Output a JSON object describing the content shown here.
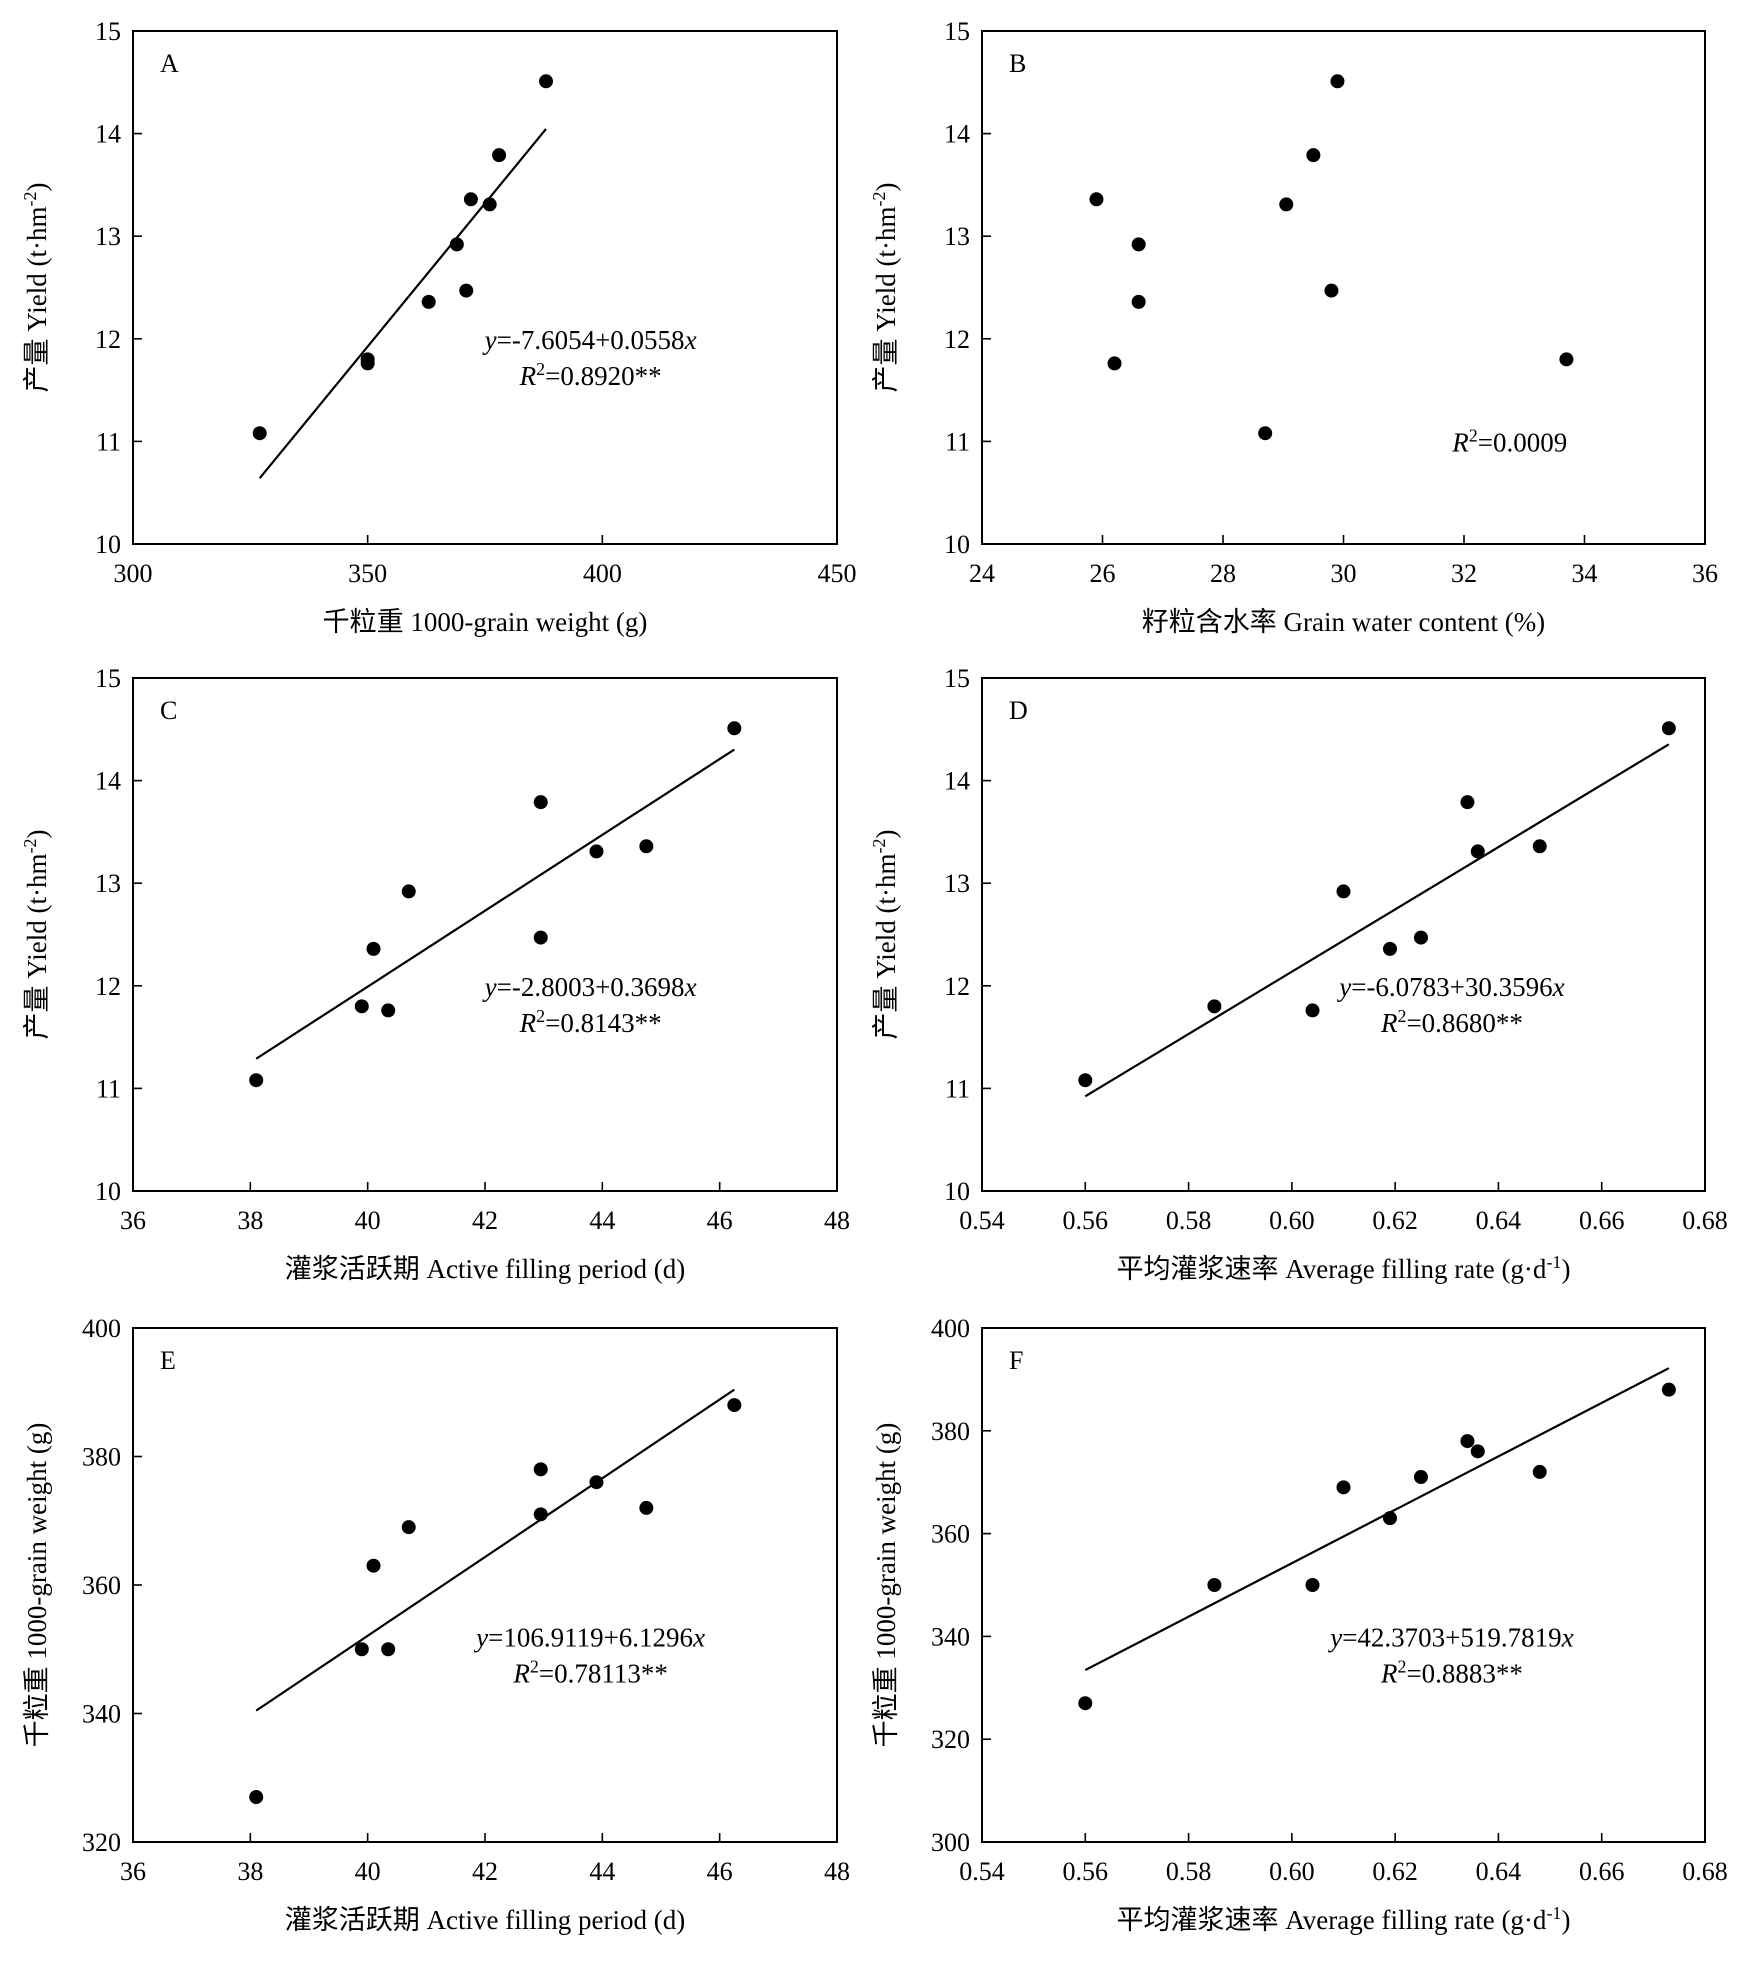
{
  "chart_data": [
    {
      "type": "scatter",
      "panel": "A",
      "xlabel": "千粒重 1000-grain weight (g)",
      "ylabel": "产量 Yield (t·hm⁻²)",
      "xlim": [
        300,
        450
      ],
      "xticks": [
        300,
        350,
        400,
        450
      ],
      "xdecimals": 0,
      "ylim": [
        10,
        15
      ],
      "yticks": [
        10,
        11,
        12,
        13,
        14,
        15
      ],
      "ydecimals": 0,
      "points": [
        [
          327,
          11.08
        ],
        [
          350,
          11.8
        ],
        [
          350,
          11.76
        ],
        [
          363,
          12.36
        ],
        [
          369,
          12.92
        ],
        [
          371,
          12.47
        ],
        [
          372,
          13.36
        ],
        [
          376,
          13.31
        ],
        [
          378,
          13.79
        ],
        [
          388,
          14.51
        ]
      ],
      "fit": {
        "intercept": -7.6054,
        "slope": 0.0558,
        "xrange": [
          327,
          388
        ]
      },
      "equation": "y=-7.6054+0.0558x",
      "r2": "R2=0.8920**"
    },
    {
      "type": "scatter",
      "panel": "B",
      "xlabel": "籽粒含水率 Grain water content (%)",
      "ylabel": "产量 Yield (t·hm⁻²)",
      "xlim": [
        24,
        36
      ],
      "xticks": [
        24,
        26,
        28,
        30,
        32,
        34,
        36
      ],
      "xdecimals": 0,
      "ylim": [
        10,
        15
      ],
      "yticks": [
        10,
        11,
        12,
        13,
        14,
        15
      ],
      "ydecimals": 0,
      "points": [
        [
          25.9,
          13.36
        ],
        [
          26.6,
          12.92
        ],
        [
          26.6,
          12.36
        ],
        [
          26.2,
          11.76
        ],
        [
          28.7,
          11.08
        ],
        [
          29.05,
          13.31
        ],
        [
          29.5,
          13.79
        ],
        [
          29.8,
          12.47
        ],
        [
          29.9,
          14.51
        ],
        [
          33.7,
          11.8
        ]
      ],
      "fit": null,
      "equation": "",
      "r2": "R2=0.0009"
    },
    {
      "type": "scatter",
      "panel": "C",
      "xlabel": "灌浆活跃期 Active filling period (d)",
      "ylabel": "产量 Yield (t·hm⁻²)",
      "xlim": [
        36,
        48
      ],
      "xticks": [
        36,
        38,
        40,
        42,
        44,
        46,
        48
      ],
      "xdecimals": 0,
      "ylim": [
        10,
        15
      ],
      "yticks": [
        10,
        11,
        12,
        13,
        14,
        15
      ],
      "ydecimals": 0,
      "points": [
        [
          38.1,
          11.08
        ],
        [
          39.9,
          11.8
        ],
        [
          40.1,
          12.36
        ],
        [
          40.35,
          11.76
        ],
        [
          40.7,
          12.92
        ],
        [
          42.95,
          13.79
        ],
        [
          42.95,
          12.47
        ],
        [
          43.9,
          13.31
        ],
        [
          44.75,
          13.36
        ],
        [
          46.25,
          14.51
        ]
      ],
      "fit": {
        "intercept": -2.8003,
        "slope": 0.3698,
        "xrange": [
          38.1,
          46.25
        ]
      },
      "equation": "y=-2.8003+0.3698x",
      "r2": "R2=0.8143**"
    },
    {
      "type": "scatter",
      "panel": "D",
      "xlabel": "平均灌浆速率 Average filling rate (g·d⁻¹)",
      "ylabel": "产量 Yield (t·hm⁻²)",
      "xlim": [
        0.54,
        0.68
      ],
      "xticks": [
        0.54,
        0.56,
        0.58,
        0.6,
        0.62,
        0.64,
        0.66,
        0.68
      ],
      "xdecimals": 2,
      "ylim": [
        10,
        15
      ],
      "yticks": [
        10,
        11,
        12,
        13,
        14,
        15
      ],
      "ydecimals": 0,
      "points": [
        [
          0.56,
          11.08
        ],
        [
          0.585,
          11.8
        ],
        [
          0.604,
          11.76
        ],
        [
          0.61,
          12.92
        ],
        [
          0.619,
          12.36
        ],
        [
          0.625,
          12.47
        ],
        [
          0.634,
          13.79
        ],
        [
          0.636,
          13.31
        ],
        [
          0.648,
          13.36
        ],
        [
          0.673,
          14.51
        ]
      ],
      "fit": {
        "intercept": -6.0783,
        "slope": 30.3596,
        "xrange": [
          0.56,
          0.673
        ]
      },
      "equation": "y=-6.0783+30.3596x",
      "r2": "R2=0.8680**"
    },
    {
      "type": "scatter",
      "panel": "E",
      "xlabel": "灌浆活跃期 Active filling period (d)",
      "ylabel": "千粒重 1000-grain weight (g)",
      "xlim": [
        36,
        48
      ],
      "xticks": [
        36,
        38,
        40,
        42,
        44,
        46,
        48
      ],
      "xdecimals": 0,
      "ylim": [
        320,
        400
      ],
      "yticks": [
        320,
        340,
        360,
        380,
        400
      ],
      "ydecimals": 0,
      "points": [
        [
          38.1,
          327
        ],
        [
          39.9,
          350
        ],
        [
          40.1,
          363
        ],
        [
          40.35,
          350
        ],
        [
          40.7,
          369
        ],
        [
          42.95,
          378
        ],
        [
          42.95,
          371
        ],
        [
          43.9,
          376
        ],
        [
          44.75,
          372
        ],
        [
          46.25,
          388
        ]
      ],
      "fit": {
        "intercept": 106.9119,
        "slope": 6.1296,
        "xrange": [
          38.1,
          46.25
        ]
      },
      "equation": "y=106.9119+6.1296x",
      "r2": "R2=0.78113**"
    },
    {
      "type": "scatter",
      "panel": "F",
      "xlabel": "平均灌浆速率 Average filling rate (g·d⁻¹)",
      "ylabel": "千粒重 1000-grain weight (g)",
      "xlim": [
        0.54,
        0.68
      ],
      "xticks": [
        0.54,
        0.56,
        0.58,
        0.6,
        0.62,
        0.64,
        0.66,
        0.68
      ],
      "xdecimals": 2,
      "ylim": [
        300,
        400
      ],
      "yticks": [
        300,
        320,
        340,
        360,
        380,
        400
      ],
      "ydecimals": 0,
      "points": [
        [
          0.56,
          327
        ],
        [
          0.585,
          350
        ],
        [
          0.604,
          350
        ],
        [
          0.61,
          369
        ],
        [
          0.619,
          363
        ],
        [
          0.625,
          371
        ],
        [
          0.634,
          378
        ],
        [
          0.636,
          376
        ],
        [
          0.648,
          372
        ],
        [
          0.673,
          388
        ]
      ],
      "fit": {
        "intercept": 42.3703,
        "slope": 519.7819,
        "xrange": [
          0.56,
          0.673
        ]
      },
      "equation": "y=42.3703+519.7819x",
      "r2": "R2=0.8883**"
    }
  ]
}
